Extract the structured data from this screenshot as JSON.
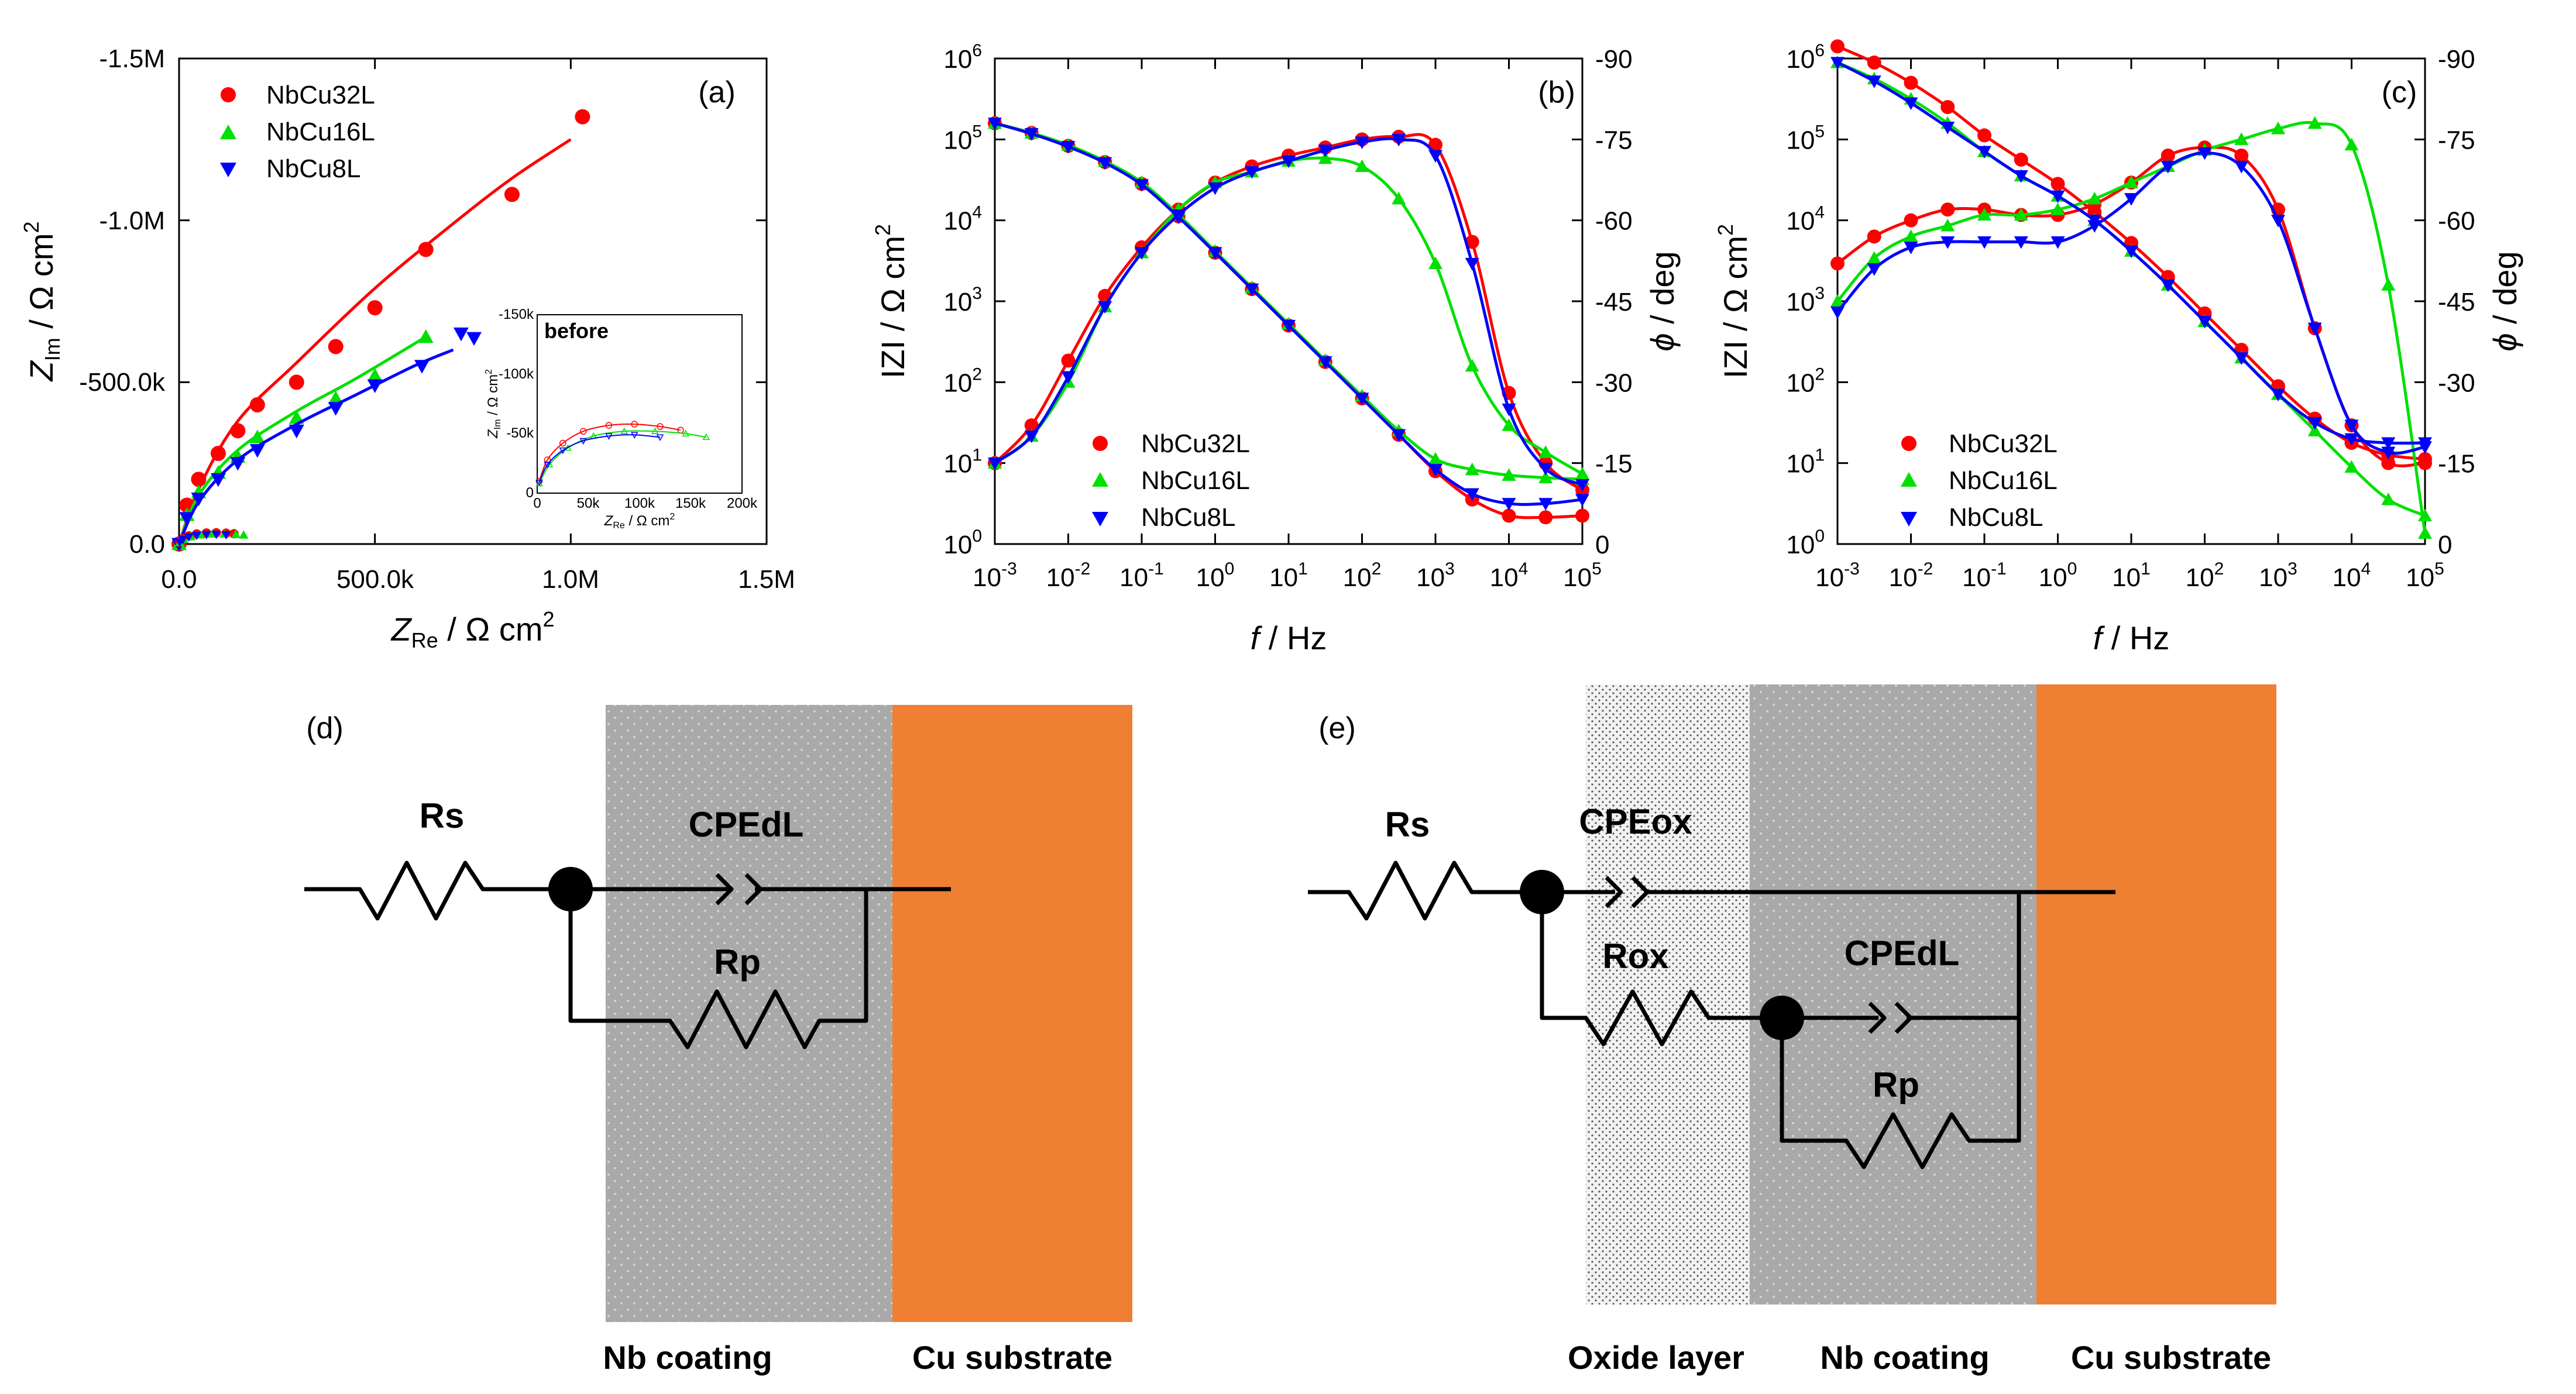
{
  "colors": {
    "NbCu32L": "#ff0000",
    "NbCu16L": "#00e000",
    "NbCu8L": "#0000ff",
    "coating": "#a9a9a9",
    "oxide": "#e6e6e6",
    "substrate": "#ee7f33"
  },
  "chart_data": [
    {
      "type": "scatter",
      "panel": "(a)",
      "xlabel": "Z",
      "xlabel_sub": "Re",
      "xlabel_unit": " / Ω cm",
      "xlabel_sup": "2",
      "ylabel": "Z",
      "ylabel_sub": "Im",
      "ylabel_unit": " / Ω cm",
      "ylabel_sup": "2",
      "xlim": [
        0,
        1500000
      ],
      "ylim": [
        0,
        -1500000
      ],
      "xticks": [
        "0.0",
        "500.0k",
        "1.0M",
        "1.5M"
      ],
      "yticks": [
        "0.0",
        "-500.0k",
        "-1.0M",
        "-1.5M"
      ],
      "legend": [
        "NbCu32L",
        "NbCu16L",
        "NbCu8L"
      ],
      "series": [
        {
          "name": "NbCu32L",
          "x": [
            0.0,
            20000,
            50000,
            100000,
            150000,
            200000,
            300000,
            400000,
            500000,
            630000,
            850000,
            1030000
          ],
          "y": [
            0,
            -120000,
            -200000,
            -280000,
            -350000,
            -430000,
            -500000,
            -610000,
            -730000,
            -910000,
            -1080000,
            -1320000
          ],
          "fit": {
            "x": [
              0,
              50000,
              150000,
              300000,
              500000,
              700000,
              850000,
              1000000
            ],
            "y": [
              0,
              -170000,
              -380000,
              -560000,
              -790000,
              -990000,
              -1130000,
              -1250000
            ]
          }
        },
        {
          "name": "NbCu16L",
          "x": [
            0,
            20000,
            50000,
            100000,
            150000,
            200000,
            300000,
            400000,
            500000,
            630000
          ],
          "y": [
            0,
            -90000,
            -160000,
            -220000,
            -270000,
            -330000,
            -390000,
            -450000,
            -520000,
            -640000
          ],
          "fit": {
            "x": [
              0,
              50000,
              150000,
              300000,
              450000,
              630000
            ],
            "y": [
              0,
              -150000,
              -290000,
              -410000,
              -510000,
              -640000
            ]
          }
        },
        {
          "name": "NbCu8L",
          "x": [
            0,
            20000,
            50000,
            100000,
            150000,
            200000,
            300000,
            400000,
            500000,
            620000,
            720000
          ],
          "y": [
            0,
            -80000,
            -140000,
            -200000,
            -250000,
            -290000,
            -350000,
            -420000,
            -490000,
            -550000,
            -650000
          ],
          "fit": {
            "x": [
              0,
              50000,
              150000,
              300000,
              450000,
              600000,
              700000
            ],
            "y": [
              0,
              -130000,
              -260000,
              -370000,
              -460000,
              -550000,
              -600000
            ]
          }
        }
      ],
      "inset": {
        "label": "before",
        "xlabel": "Z",
        "xlabel_sub": "Re",
        "xlabel_unit": " / Ω cm",
        "xlabel_sup": "2",
        "ylabel": "Z",
        "ylabel_sub": "Im",
        "ylabel_unit": " / Ω cm",
        "ylabel_sup": "2",
        "xlim": [
          0,
          200000
        ],
        "ylim": [
          0,
          -150000
        ],
        "xticks": [
          "0",
          "50k",
          "100k",
          "150k",
          "200k"
        ],
        "yticks": [
          "0",
          "-50k",
          "-100k",
          "-150k"
        ],
        "series": [
          {
            "name": "NbCu32L",
            "x": [
              2000,
              10000,
              25000,
              45000,
              70000,
              95000,
              120000,
              140000
            ],
            "y": [
              -10000,
              -28000,
              -42000,
              -52000,
              -57000,
              -58000,
              -56000,
              -53000
            ]
          },
          {
            "name": "NbCu16L",
            "x": [
              2000,
              12000,
              30000,
              55000,
              85000,
              115000,
              145000,
              165000
            ],
            "y": [
              -8000,
              -24000,
              -38000,
              -48000,
              -52000,
              -52000,
              -50000,
              -47000
            ]
          },
          {
            "name": "NbCu8L",
            "x": [
              2000,
              10000,
              25000,
              45000,
              70000,
              95000,
              120000
            ],
            "y": [
              -9000,
              -24000,
              -36000,
              -44000,
              -48000,
              -49000,
              -47000
            ]
          }
        ]
      }
    },
    {
      "type": "line",
      "panel": "(b)",
      "xlabel": "f",
      "xlabel_unit": " / Hz",
      "ylabel": "IZI / Ω cm",
      "ylabel_sup": "2",
      "y2label": "ϕ",
      "y2label_unit": " / deg",
      "xlim_log10": [
        -3,
        5
      ],
      "ylim_log10": [
        0,
        6
      ],
      "y2lim": [
        0,
        -90
      ],
      "xticks_exp": [
        "-3",
        "-2",
        "-1",
        "0",
        "1",
        "2",
        "3",
        "4",
        "5"
      ],
      "yticks_exp": [
        "0",
        "1",
        "2",
        "3",
        "4",
        "5",
        "6"
      ],
      "y2ticks": [
        "0",
        "-15",
        "-30",
        "-45",
        "-60",
        "-75",
        "-90"
      ],
      "legend": [
        "NbCu32L",
        "NbCu16L",
        "NbCu8L"
      ],
      "series": [
        {
          "name": "NbCu32L",
          "modulus": {
            "logf": [
              -3,
              -2.5,
              -2,
              -1.5,
              -1,
              -0.5,
              0,
              0.5,
              1,
              1.5,
              2,
              2.5,
              3,
              3.5,
              4,
              4.5,
              5
            ],
            "logZ": [
              5.2,
              5.08,
              4.92,
              4.72,
              4.45,
              4.05,
              3.6,
              3.15,
              2.7,
              2.25,
              1.8,
              1.35,
              0.9,
              0.55,
              0.35,
              0.33,
              0.35
            ]
          },
          "phase": {
            "logf": [
              -3,
              -2.5,
              -2,
              -1.5,
              -1,
              -0.5,
              0,
              0.5,
              1,
              1.5,
              2,
              2.5,
              3,
              3.5,
              4,
              4.5,
              5
            ],
            "deg": [
              -15,
              -22,
              -34,
              -46,
              -55,
              -62,
              -67,
              -70,
              -72,
              -73.5,
              -75,
              -75.5,
              -74,
              -56,
              -28,
              -15,
              -10
            ]
          }
        },
        {
          "name": "NbCu16L",
          "modulus": {
            "logf": [
              -3,
              -2.5,
              -2,
              -1.5,
              -1,
              -0.5,
              0,
              0.5,
              1,
              1.5,
              2,
              2.5,
              3,
              3.5,
              4,
              4.5,
              5
            ],
            "logZ": [
              5.2,
              5.08,
              4.93,
              4.73,
              4.47,
              4.07,
              3.62,
              3.17,
              2.72,
              2.27,
              1.83,
              1.4,
              1.05,
              0.92,
              0.85,
              0.82,
              0.8
            ]
          },
          "phase": {
            "logf": [
              -3,
              -2.5,
              -2,
              -1.5,
              -1,
              -0.5,
              0,
              0.5,
              1,
              1.5,
              2,
              2.5,
              3,
              3.5,
              4,
              4.5,
              5
            ],
            "deg": [
              -15,
              -20,
              -30,
              -44,
              -54,
              -62,
              -67,
              -69,
              -71,
              -71.5,
              -70,
              -64,
              -52,
              -33,
              -22,
              -17,
              -13
            ]
          }
        },
        {
          "name": "NbCu8L",
          "modulus": {
            "logf": [
              -3,
              -2.5,
              -2,
              -1.5,
              -1,
              -0.5,
              0,
              0.5,
              1,
              1.5,
              2,
              2.5,
              3,
              3.5,
              4,
              4.5,
              5
            ],
            "logZ": [
              5.2,
              5.07,
              4.91,
              4.71,
              4.44,
              4.04,
              3.6,
              3.15,
              2.7,
              2.25,
              1.8,
              1.35,
              0.92,
              0.62,
              0.5,
              0.5,
              0.55
            ]
          },
          "phase": {
            "logf": [
              -3,
              -2.5,
              -2,
              -1.5,
              -1,
              -0.5,
              0,
              0.5,
              1,
              1.5,
              2,
              2.5,
              3,
              3.5,
              4,
              4.5,
              5
            ],
            "deg": [
              -15,
              -20,
              -31,
              -44,
              -54,
              -61,
              -66,
              -69,
              -71,
              -73,
              -74.5,
              -75,
              -72,
              -52,
              -25,
              -14,
              -11
            ]
          }
        }
      ]
    },
    {
      "type": "line",
      "panel": "(c)",
      "xlabel": "f",
      "xlabel_unit": " / Hz",
      "ylabel": "IZI / Ω cm",
      "ylabel_sup": "2",
      "y2label": "ϕ",
      "y2label_unit": " / deg",
      "xlim_log10": [
        -3,
        5
      ],
      "ylim_log10": [
        0,
        6
      ],
      "y2lim": [
        0,
        -90
      ],
      "xticks_exp": [
        "-3",
        "-2",
        "-1",
        "0",
        "1",
        "2",
        "3",
        "4",
        "5"
      ],
      "yticks_exp": [
        "0",
        "1",
        "2",
        "3",
        "4",
        "5",
        "6"
      ],
      "y2ticks": [
        "0",
        "-15",
        "-30",
        "-45",
        "-60",
        "-75",
        "-90"
      ],
      "legend": [
        "NbCu32L",
        "NbCu16L",
        "NbCu8L"
      ],
      "series": [
        {
          "name": "NbCu32L",
          "modulus": {
            "logf": [
              -3,
              -2.5,
              -2,
              -1.5,
              -1,
              -0.5,
              0,
              0.5,
              1,
              1.5,
              2,
              2.5,
              3,
              3.5,
              4,
              4.5,
              5
            ],
            "logZ": [
              6.15,
              5.95,
              5.7,
              5.4,
              5.05,
              4.75,
              4.45,
              4.1,
              3.72,
              3.3,
              2.85,
              2.4,
              1.95,
              1.55,
              1.25,
              1.1,
              1.05
            ]
          },
          "phase": {
            "logf": [
              -3,
              -2.5,
              -2,
              -1.5,
              -1,
              -0.5,
              0,
              0.5,
              1,
              1.5,
              2,
              2.5,
              3,
              3.5,
              4,
              4.5,
              5
            ],
            "deg": [
              -52,
              -57,
              -60,
              -62,
              -62,
              -61,
              -61,
              -63,
              -67,
              -72,
              -73.5,
              -72,
              -62,
              -40,
              -22,
              -15,
              -15
            ]
          }
        },
        {
          "name": "NbCu16L",
          "modulus": {
            "logf": [
              -3,
              -2.5,
              -2,
              -1.5,
              -1,
              -0.5,
              0,
              0.5,
              1,
              1.5,
              2,
              2.5,
              3,
              3.5,
              4,
              4.5,
              5
            ],
            "logZ": [
              5.95,
              5.75,
              5.5,
              5.2,
              4.85,
              4.55,
              4.3,
              4.0,
              3.62,
              3.2,
              2.75,
              2.3,
              1.85,
              1.4,
              0.95,
              0.55,
              0.35
            ]
          },
          "phase": {
            "logf": [
              -3,
              -2.5,
              -2,
              -1.5,
              -1,
              -0.5,
              0,
              0.5,
              1,
              1.5,
              2,
              2.5,
              3,
              3.5,
              4,
              4.5,
              5
            ],
            "deg": [
              -45,
              -53,
              -57,
              -59,
              -61,
              -61,
              -62,
              -64,
              -67,
              -70,
              -73,
              -75,
              -77,
              -78,
              -74,
              -48,
              -2
            ]
          }
        },
        {
          "name": "NbCu8L",
          "modulus": {
            "logf": [
              -3,
              -2.5,
              -2,
              -1.5,
              -1,
              -0.5,
              0,
              0.5,
              1,
              1.5,
              2,
              2.5,
              3,
              3.5,
              4,
              4.5,
              5
            ],
            "logZ": [
              5.95,
              5.72,
              5.45,
              5.15,
              4.85,
              4.55,
              4.3,
              4.0,
              3.62,
              3.2,
              2.75,
              2.3,
              1.85,
              1.5,
              1.3,
              1.25,
              1.25
            ]
          },
          "phase": {
            "logf": [
              -3,
              -2.5,
              -2,
              -1.5,
              -1,
              -0.5,
              0,
              0.5,
              1,
              1.5,
              2,
              2.5,
              3,
              3.5,
              4,
              4.5,
              5
            ],
            "deg": [
              -43,
              -51,
              -55,
              -56,
              -56,
              -56,
              -56,
              -59,
              -64,
              -70,
              -72.5,
              -70,
              -60,
              -40,
              -22,
              -17,
              -18
            ]
          }
        }
      ]
    }
  ],
  "diagrams": {
    "d": {
      "panel": "(d)",
      "labels": {
        "rs": "Rs",
        "cpedl": "CPEdL",
        "rp": "Rp"
      },
      "layers": {
        "coating": "Nb coating",
        "substrate": "Cu substrate"
      }
    },
    "e": {
      "panel": "(e)",
      "labels": {
        "rs": "Rs",
        "cpeox": "CPEox",
        "rox": "Rox",
        "cpedl": "CPEdL",
        "rp": "Rp"
      },
      "layers": {
        "oxide": "Oxide layer",
        "coating": "Nb coating",
        "substrate": "Cu substrate"
      }
    }
  }
}
